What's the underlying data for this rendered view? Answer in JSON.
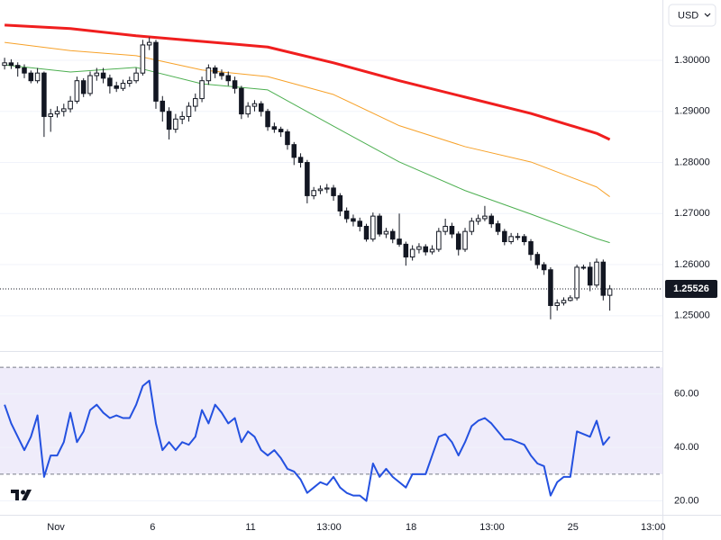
{
  "currency_selector": "USD",
  "chart_data": [
    {
      "type": "candlestick",
      "x": [
        0,
        1,
        2,
        3,
        4,
        5,
        6,
        7,
        8,
        9,
        10,
        11,
        12,
        13,
        14,
        15,
        16,
        17,
        18,
        19,
        20,
        21,
        22,
        23,
        24,
        25,
        26,
        27,
        28,
        29,
        30,
        31,
        32,
        33,
        34,
        35,
        36,
        37,
        38,
        39,
        40,
        41,
        42,
        43,
        44,
        45,
        46,
        47,
        48,
        49,
        50,
        51,
        52,
        53,
        54,
        55,
        56,
        57,
        58,
        59,
        60,
        61,
        62,
        63,
        64,
        65,
        66,
        67,
        68,
        69,
        70,
        71,
        72,
        73,
        74,
        75,
        76,
        77,
        78,
        79,
        80,
        81,
        82,
        83,
        84,
        85,
        86,
        87,
        88,
        89,
        90,
        91,
        92
      ],
      "open": [
        1.299,
        1.2995,
        1.299,
        1.2985,
        1.2975,
        1.296,
        1.2975,
        1.289,
        1.2895,
        1.29,
        1.2905,
        1.292,
        1.296,
        1.2935,
        1.297,
        1.2975,
        1.2965,
        1.295,
        1.2945,
        1.2955,
        1.296,
        1.2975,
        1.303,
        1.3035,
        1.292,
        1.29,
        1.2865,
        1.2885,
        1.289,
        1.291,
        1.2925,
        1.296,
        1.2985,
        1.2975,
        1.297,
        1.296,
        1.2945,
        1.2895,
        1.291,
        1.2915,
        1.29,
        1.287,
        1.2865,
        1.286,
        1.2835,
        1.281,
        1.28,
        1.2735,
        1.2745,
        1.2748,
        1.275,
        1.2735,
        1.2705,
        1.269,
        1.2685,
        1.2675,
        1.265,
        1.2695,
        1.266,
        1.2665,
        1.265,
        1.264,
        1.2615,
        1.263,
        1.2635,
        1.2625,
        1.263,
        1.2665,
        1.2675,
        1.266,
        1.263,
        1.2665,
        1.2685,
        1.269,
        1.2695,
        1.268,
        1.2665,
        1.2645,
        1.2655,
        1.2655,
        1.2645,
        1.262,
        1.26,
        1.259,
        1.252,
        1.2525,
        1.253,
        1.2535,
        1.2595,
        1.2595,
        1.256,
        1.2605,
        1.254
      ],
      "high": [
        1.3005,
        1.3002,
        1.2996,
        1.2992,
        1.298,
        1.2985,
        1.2978,
        1.2905,
        1.291,
        1.2915,
        1.293,
        1.2968,
        1.2965,
        1.2978,
        1.2985,
        1.2985,
        1.2972,
        1.2958,
        1.2962,
        1.2968,
        1.2985,
        1.304,
        1.3045,
        1.304,
        1.293,
        1.2908,
        1.2895,
        1.29,
        1.2918,
        1.2935,
        1.2968,
        1.2992,
        1.299,
        1.2982,
        1.2978,
        1.2968,
        1.295,
        1.2918,
        1.2922,
        1.292,
        1.2905,
        1.2878,
        1.287,
        1.2865,
        1.284,
        1.2818,
        1.2805,
        1.2752,
        1.2755,
        1.2758,
        1.2756,
        1.274,
        1.2712,
        1.2698,
        1.2692,
        1.268,
        1.2702,
        1.27,
        1.2672,
        1.267,
        1.27,
        1.2645,
        1.2638,
        1.2642,
        1.264,
        1.2638,
        1.2672,
        1.269,
        1.2682,
        1.2665,
        1.2672,
        1.2692,
        1.2698,
        1.2715,
        1.27,
        1.2686,
        1.267,
        1.2662,
        1.2662,
        1.266,
        1.265,
        1.2625,
        1.2605,
        1.2595,
        1.2532,
        1.2536,
        1.254,
        1.26,
        1.26,
        1.2605,
        1.2612,
        1.261,
        1.256
      ],
      "low": [
        1.2982,
        1.2983,
        1.2968,
        1.2965,
        1.2955,
        1.2955,
        1.285,
        1.286,
        1.2888,
        1.289,
        1.2898,
        1.2915,
        1.2928,
        1.293,
        1.296,
        1.2955,
        1.2935,
        1.2938,
        1.294,
        1.2948,
        1.2955,
        1.297,
        1.302,
        1.2905,
        1.288,
        1.2845,
        1.2858,
        1.2875,
        1.288,
        1.29,
        1.2918,
        1.2952,
        1.2965,
        1.2962,
        1.295,
        1.2935,
        1.2885,
        1.2888,
        1.29,
        1.289,
        1.2862,
        1.2858,
        1.285,
        1.2825,
        1.2795,
        1.279,
        1.272,
        1.2728,
        1.2738,
        1.274,
        1.2725,
        1.2695,
        1.2682,
        1.2675,
        1.2665,
        1.2645,
        1.2645,
        1.2655,
        1.2652,
        1.2642,
        1.2635,
        1.2598,
        1.2608,
        1.2622,
        1.2618,
        1.262,
        1.2625,
        1.2658,
        1.2652,
        1.2618,
        1.2625,
        1.2658,
        1.2678,
        1.2685,
        1.2672,
        1.2658,
        1.2638,
        1.264,
        1.2648,
        1.2638,
        1.2608,
        1.2592,
        1.258,
        1.2493,
        1.251,
        1.252,
        1.2528,
        1.253,
        1.259,
        1.2548,
        1.2555,
        1.253,
        1.251
      ],
      "close": [
        1.2995,
        1.299,
        1.2985,
        1.2975,
        1.296,
        1.2975,
        1.289,
        1.2895,
        1.29,
        1.2905,
        1.292,
        1.296,
        1.2935,
        1.297,
        1.2975,
        1.2965,
        1.295,
        1.2945,
        1.2955,
        1.296,
        1.2975,
        1.303,
        1.3035,
        1.292,
        1.29,
        1.2865,
        1.2885,
        1.289,
        1.291,
        1.2925,
        1.296,
        1.2985,
        1.2975,
        1.297,
        1.296,
        1.2945,
        1.2895,
        1.291,
        1.2915,
        1.29,
        1.287,
        1.2865,
        1.286,
        1.2835,
        1.281,
        1.28,
        1.2735,
        1.2745,
        1.2748,
        1.275,
        1.2735,
        1.2705,
        1.269,
        1.2685,
        1.2675,
        1.265,
        1.2695,
        1.266,
        1.2665,
        1.265,
        1.264,
        1.2615,
        1.263,
        1.2635,
        1.2625,
        1.263,
        1.2665,
        1.2675,
        1.266,
        1.263,
        1.2665,
        1.2685,
        1.269,
        1.2695,
        1.268,
        1.2665,
        1.2645,
        1.2655,
        1.2655,
        1.2645,
        1.262,
        1.26,
        1.259,
        1.252,
        1.2525,
        1.253,
        1.2535,
        1.2595,
        1.2595,
        1.256,
        1.2605,
        1.254,
        1.25526
      ],
      "colors": {
        "up": "#ffffff",
        "down": "#131722",
        "outline": "#131722"
      },
      "series": [
        {
          "color": "#f01e1e",
          "line_width": 3,
          "x": [
            0,
            10,
            20,
            30,
            40,
            50,
            60,
            70,
            80,
            90,
            92
          ],
          "values": [
            1.3069,
            1.3062,
            1.3048,
            1.3037,
            1.3026,
            1.2995,
            1.296,
            1.2928,
            1.2896,
            1.2857,
            1.2845
          ]
        },
        {
          "color": "#f7a128",
          "line_width": 1,
          "x": [
            0,
            10,
            20,
            30,
            40,
            50,
            60,
            70,
            80,
            90,
            92
          ],
          "values": [
            1.3035,
            1.3019,
            1.3009,
            1.2981,
            1.2968,
            1.2933,
            1.2872,
            1.2831,
            1.2801,
            1.2752,
            1.2733
          ]
        },
        {
          "color": "#4caf50",
          "line_width": 1,
          "x": [
            0,
            10,
            20,
            30,
            40,
            50,
            60,
            70,
            80,
            90,
            92
          ],
          "values": [
            1.2991,
            1.2977,
            1.2986,
            1.2954,
            1.2942,
            1.2871,
            1.2801,
            1.2745,
            1.2699,
            1.2651,
            1.2643
          ]
        }
      ],
      "xlim": [
        -0.7,
        100
      ],
      "ylim": [
        1.2431,
        1.3118
      ],
      "yticks": [
        {
          "value": 1.25,
          "label": "1.25000"
        },
        {
          "value": 1.26,
          "label": "1.26000"
        },
        {
          "value": 1.27,
          "label": "1.27000"
        },
        {
          "value": 1.28,
          "label": "1.28000"
        },
        {
          "value": 1.29,
          "label": "1.29000"
        },
        {
          "value": 1.3,
          "label": "1.30000"
        }
      ],
      "grid": true
    },
    {
      "type": "line",
      "x": [
        0,
        1,
        2,
        3,
        4,
        5,
        6,
        7,
        8,
        9,
        10,
        11,
        12,
        13,
        14,
        15,
        16,
        17,
        18,
        19,
        20,
        21,
        22,
        23,
        24,
        25,
        26,
        27,
        28,
        29,
        30,
        31,
        32,
        33,
        34,
        35,
        36,
        37,
        38,
        39,
        40,
        41,
        42,
        43,
        44,
        45,
        46,
        47,
        48,
        49,
        50,
        51,
        52,
        53,
        54,
        55,
        56,
        57,
        58,
        59,
        60,
        61,
        62,
        63,
        64,
        65,
        66,
        67,
        68,
        69,
        70,
        71,
        72,
        73,
        74,
        75,
        76,
        77,
        78,
        79,
        80,
        81,
        82,
        83,
        84,
        85,
        86,
        87,
        88,
        89,
        90,
        91,
        92
      ],
      "values": [
        56,
        49,
        44,
        39,
        44,
        52,
        29,
        37,
        37,
        42,
        53,
        42,
        46,
        54,
        56,
        53,
        51,
        52,
        51,
        51,
        56,
        63,
        65,
        49,
        39,
        42,
        39,
        42,
        41,
        44,
        54,
        49,
        56,
        53,
        49,
        51,
        42,
        46,
        44,
        39,
        37,
        39,
        36,
        32,
        31,
        28,
        23,
        25,
        27,
        26,
        29,
        25,
        23,
        22,
        22,
        20,
        34,
        29,
        32,
        29,
        27,
        25,
        30,
        30,
        30,
        37,
        44,
        45,
        42,
        37,
        42,
        48,
        50,
        51,
        49,
        46,
        43,
        43,
        42,
        41,
        37,
        34,
        33,
        22,
        27,
        29,
        29,
        46,
        45,
        44,
        50,
        41,
        44
      ],
      "color": "#2451e0",
      "band": [
        30,
        70
      ],
      "band_color": "#efecfa",
      "xlim": [
        -0.7,
        100
      ],
      "ylim": [
        14.8,
        73.4
      ],
      "yticks": [
        {
          "value": 20,
          "label": "20.00"
        },
        {
          "value": 40,
          "label": "40.00"
        },
        {
          "value": 60,
          "label": "60.00"
        }
      ],
      "xticks": [
        {
          "value": 7.8,
          "label": "Nov"
        },
        {
          "value": 22.5,
          "label": "6"
        },
        {
          "value": 37.4,
          "label": "11"
        },
        {
          "value": 49.3,
          "label": "13:00"
        },
        {
          "value": 61.8,
          "label": "18"
        },
        {
          "value": 74.1,
          "label": "13:00"
        },
        {
          "value": 86.4,
          "label": "25"
        },
        {
          "value": 98.6,
          "label": "13:00"
        }
      ],
      "grid": true
    }
  ]
}
